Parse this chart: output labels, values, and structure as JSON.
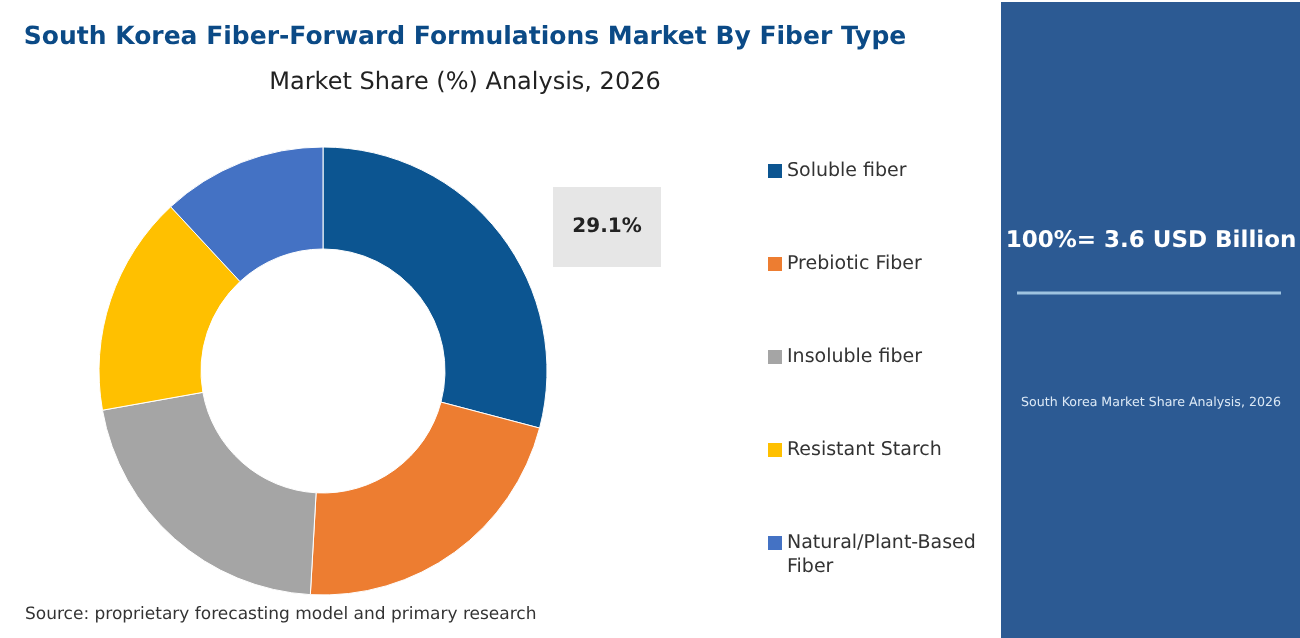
{
  "chart_data": {
    "type": "donut",
    "title": "South Korea Fiber-Forward Formulations Market By Fiber Type",
    "subtitle": "Market Share (%) Analysis, 2026",
    "categories": [
      "Soluble fiber",
      "Prebiotic Fiber",
      "Insoluble fiber",
      "Resistant Starch",
      "Natural/Plant-Based Fiber"
    ],
    "values": [
      29.1,
      21.8,
      21.3,
      15.9,
      11.9
    ],
    "colors": [
      "#0c5591",
      "#ed7d31",
      "#a5a5a5",
      "#ffc000",
      "#4472c4"
    ],
    "value_labels": [
      "29.1%",
      null,
      null,
      null,
      null
    ],
    "legend": "right",
    "annotations": [
      "100%= 3.6 USD Billion",
      "South Korea Market Share Analysis, 2026",
      "Source: proprietary forecasting model and primary research"
    ]
  }
}
